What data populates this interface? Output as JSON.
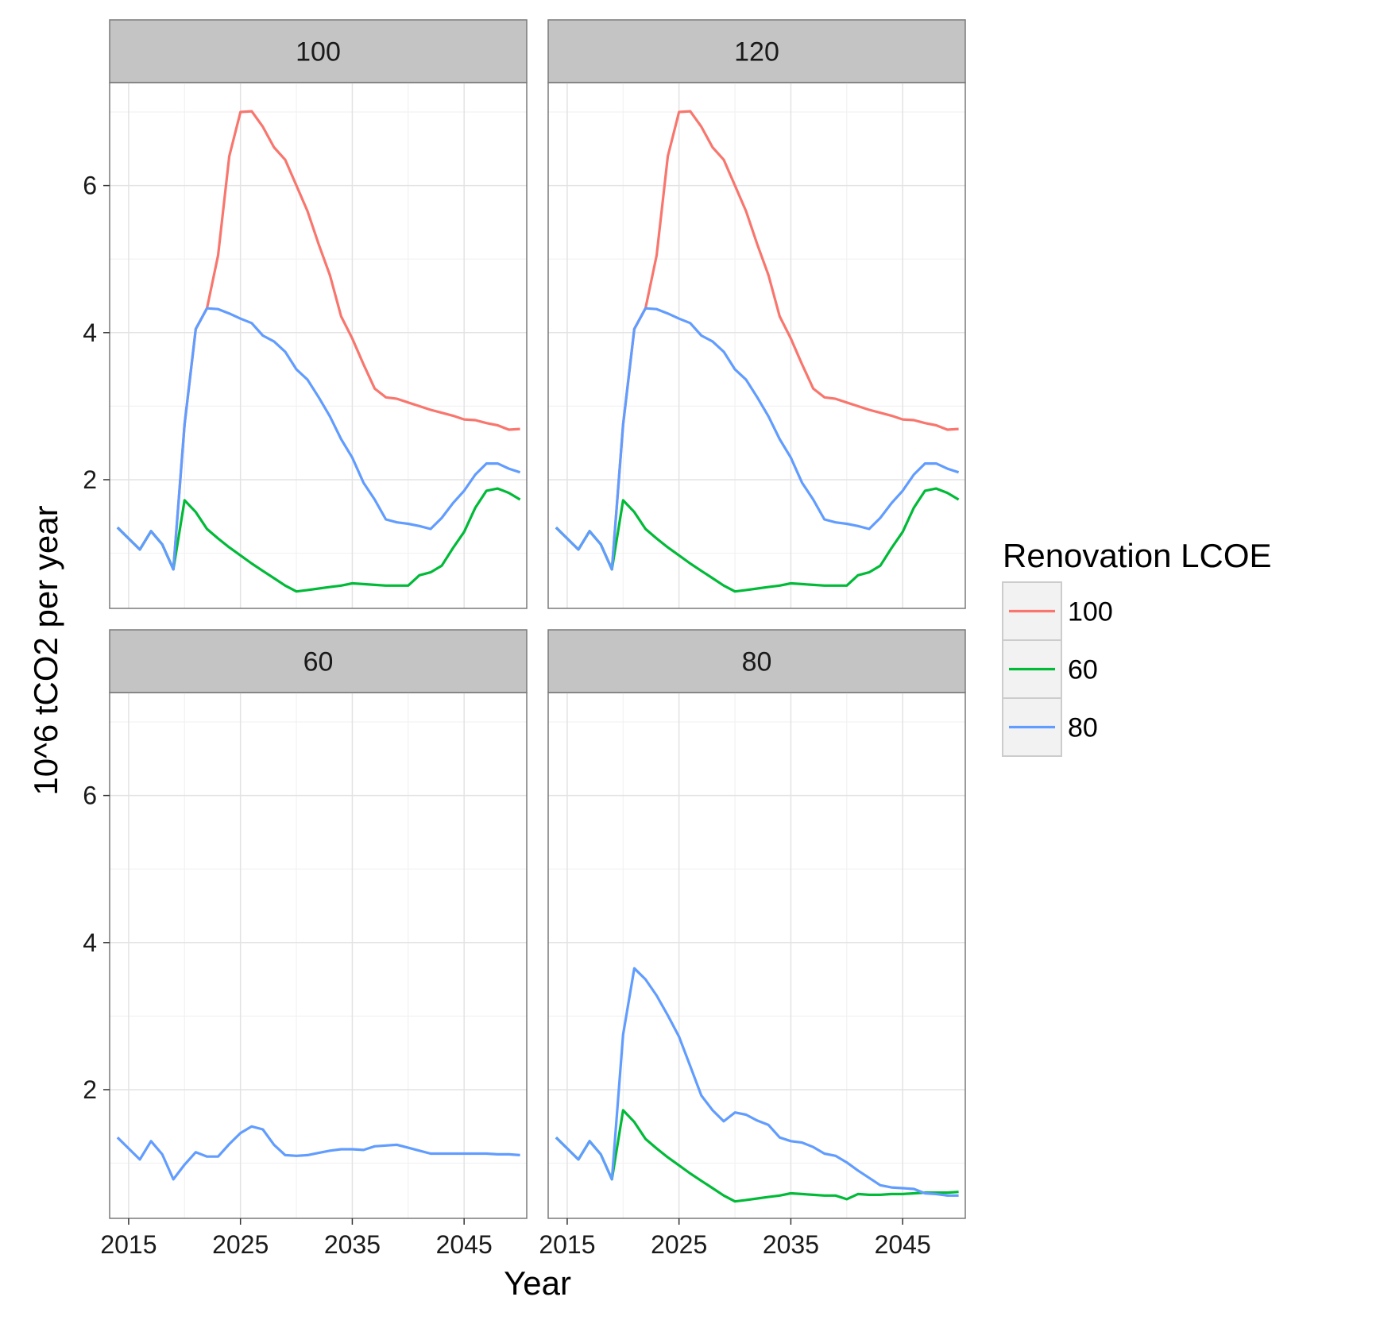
{
  "chart_data": {
    "type": "line",
    "facet_layout": "2x2",
    "xlabel": "Year",
    "ylabel": "10^6 tCO2 per year",
    "x_ticks": [
      2015,
      2025,
      2035,
      2045
    ],
    "y_ticks": [
      2,
      4,
      6
    ],
    "xlim": [
      2013.3,
      2050.6
    ],
    "ylim": [
      0.25,
      7.4
    ],
    "grid": true,
    "legend": {
      "title": "Renovation LCOE",
      "placement": "right",
      "entries": [
        {
          "label": "100",
          "color": "#F8766D"
        },
        {
          "label": "60",
          "color": "#00BA38"
        },
        {
          "label": "80",
          "color": "#619CFF"
        }
      ]
    },
    "x": [
      2014,
      2015,
      2016,
      2017,
      2018,
      2019,
      2020,
      2021,
      2022,
      2023,
      2024,
      2025,
      2026,
      2027,
      2028,
      2029,
      2030,
      2031,
      2032,
      2033,
      2034,
      2035,
      2036,
      2037,
      2038,
      2039,
      2040,
      2041,
      2042,
      2043,
      2044,
      2045,
      2046,
      2047,
      2048,
      2049,
      2050
    ],
    "facets": [
      {
        "title": "100",
        "series": [
          {
            "legend": "100",
            "values": [
              1.35,
              1.2,
              1.05,
              1.3,
              1.12,
              0.78,
              2.75,
              4.05,
              4.33,
              5.05,
              6.4,
              7.0,
              7.01,
              6.8,
              6.52,
              6.35,
              6.0,
              5.65,
              5.2,
              4.78,
              4.22,
              3.92,
              3.57,
              3.24,
              3.12,
              3.1,
              3.05,
              3.0,
              2.95,
              2.91,
              2.87,
              2.82,
              2.81,
              2.77,
              2.74,
              2.68,
              2.69
            ]
          },
          {
            "legend": "60",
            "values": [
              1.35,
              1.2,
              1.05,
              1.3,
              1.12,
              0.78,
              1.72,
              1.56,
              1.33,
              1.2,
              1.08,
              0.97,
              0.86,
              0.76,
              0.66,
              0.56,
              0.48,
              0.5,
              0.52,
              0.54,
              0.56,
              0.59,
              0.58,
              0.57,
              0.56,
              0.56,
              0.56,
              0.7,
              0.74,
              0.83,
              1.07,
              1.29,
              1.62,
              1.85,
              1.88,
              1.82,
              1.73
            ]
          },
          {
            "legend": "80",
            "values": [
              1.35,
              1.2,
              1.05,
              1.3,
              1.12,
              0.78,
              2.75,
              4.05,
              4.33,
              4.32,
              4.26,
              4.19,
              4.13,
              3.96,
              3.88,
              3.74,
              3.5,
              3.36,
              3.12,
              2.86,
              2.55,
              2.3,
              1.96,
              1.73,
              1.46,
              1.42,
              1.4,
              1.37,
              1.33,
              1.48,
              1.68,
              1.85,
              2.07,
              2.22,
              2.22,
              2.15,
              2.1
            ]
          }
        ]
      },
      {
        "title": "120",
        "series": [
          {
            "legend": "100",
            "values": [
              1.35,
              1.2,
              1.05,
              1.3,
              1.12,
              0.78,
              2.75,
              4.05,
              4.33,
              5.05,
              6.4,
              7.0,
              7.01,
              6.8,
              6.52,
              6.35,
              6.0,
              5.65,
              5.2,
              4.78,
              4.22,
              3.92,
              3.57,
              3.24,
              3.12,
              3.1,
              3.05,
              3.0,
              2.95,
              2.91,
              2.87,
              2.82,
              2.81,
              2.77,
              2.74,
              2.68,
              2.69
            ]
          },
          {
            "legend": "60",
            "values": [
              1.35,
              1.2,
              1.05,
              1.3,
              1.12,
              0.78,
              1.72,
              1.56,
              1.33,
              1.2,
              1.08,
              0.97,
              0.86,
              0.76,
              0.66,
              0.56,
              0.48,
              0.5,
              0.52,
              0.54,
              0.56,
              0.59,
              0.58,
              0.57,
              0.56,
              0.56,
              0.56,
              0.7,
              0.74,
              0.83,
              1.07,
              1.29,
              1.62,
              1.85,
              1.88,
              1.82,
              1.73
            ]
          },
          {
            "legend": "80",
            "values": [
              1.35,
              1.2,
              1.05,
              1.3,
              1.12,
              0.78,
              2.75,
              4.05,
              4.33,
              4.32,
              4.26,
              4.19,
              4.13,
              3.96,
              3.88,
              3.74,
              3.5,
              3.36,
              3.12,
              2.86,
              2.55,
              2.3,
              1.96,
              1.73,
              1.46,
              1.42,
              1.4,
              1.37,
              1.33,
              1.48,
              1.68,
              1.85,
              2.07,
              2.22,
              2.22,
              2.15,
              2.1
            ]
          }
        ]
      },
      {
        "title": "60",
        "series": [
          {
            "legend": "80",
            "values": [
              1.35,
              1.2,
              1.05,
              1.3,
              1.12,
              0.78,
              0.98,
              1.15,
              1.09,
              1.09,
              1.26,
              1.41,
              1.5,
              1.46,
              1.25,
              1.11,
              1.1,
              1.11,
              1.14,
              1.17,
              1.19,
              1.19,
              1.18,
              1.23,
              1.24,
              1.25,
              1.21,
              1.17,
              1.13,
              1.13,
              1.13,
              1.13,
              1.13,
              1.13,
              1.12,
              1.12,
              1.11
            ]
          }
        ]
      },
      {
        "title": "80",
        "series": [
          {
            "legend": "60",
            "values": [
              1.35,
              1.2,
              1.05,
              1.3,
              1.12,
              0.78,
              1.72,
              1.56,
              1.33,
              1.2,
              1.08,
              0.97,
              0.86,
              0.76,
              0.66,
              0.56,
              0.48,
              0.5,
              0.52,
              0.54,
              0.56,
              0.59,
              0.58,
              0.57,
              0.56,
              0.56,
              0.51,
              0.58,
              0.57,
              0.57,
              0.58,
              0.58,
              0.59,
              0.6,
              0.6,
              0.6,
              0.61
            ]
          },
          {
            "legend": "80",
            "values": [
              1.35,
              1.2,
              1.05,
              1.3,
              1.12,
              0.78,
              2.75,
              3.65,
              3.5,
              3.28,
              3.01,
              2.72,
              2.32,
              1.92,
              1.72,
              1.57,
              1.69,
              1.66,
              1.58,
              1.52,
              1.35,
              1.3,
              1.28,
              1.22,
              1.13,
              1.1,
              1.01,
              0.9,
              0.8,
              0.7,
              0.67,
              0.66,
              0.65,
              0.59,
              0.58,
              0.56,
              0.56
            ]
          }
        ]
      }
    ]
  }
}
